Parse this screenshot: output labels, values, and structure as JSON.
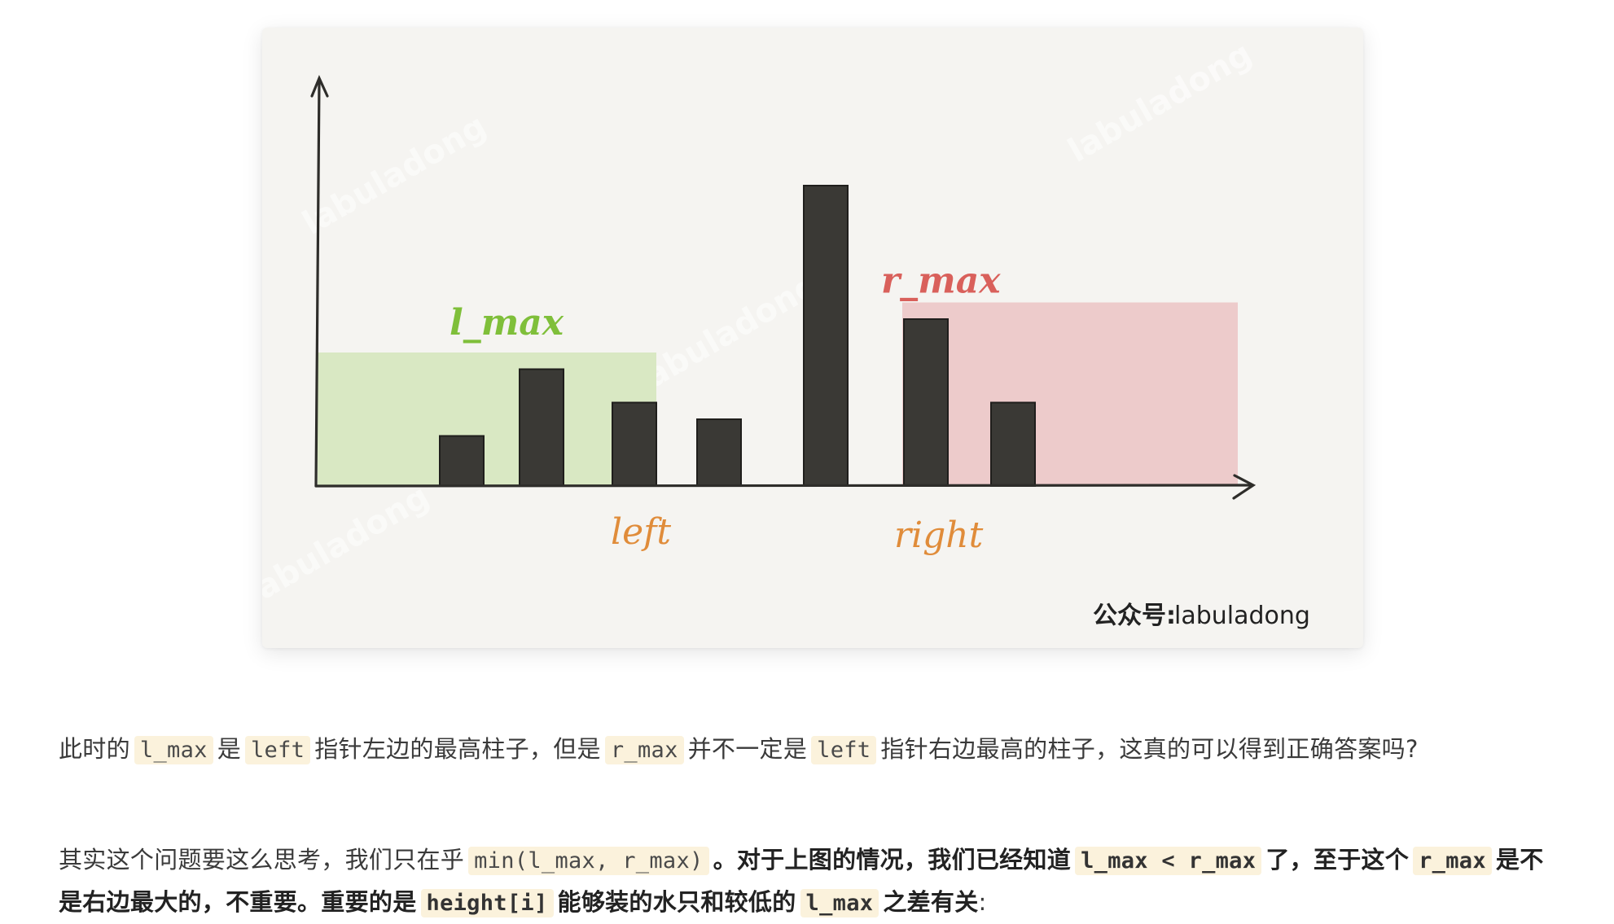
{
  "figure": {
    "labels": {
      "l_max": "l_max",
      "r_max": "r_max",
      "left": "left",
      "right": "right"
    },
    "watermark": "labuladong",
    "credit_prefix": "公众号:",
    "credit_name": "labuladong",
    "colors": {
      "bar": "#3a3935",
      "l_region": "#d9e8c3",
      "r_region": "#ecc8c8",
      "l_label": "#7fbf3a",
      "r_label": "#d9605b",
      "pointer_label": "#e08c3a"
    }
  },
  "chart_data": {
    "type": "bar",
    "values": [
      0,
      3,
      7,
      5,
      4,
      18,
      10,
      5
    ],
    "l_max_level": 8,
    "r_max_level": 11,
    "pointers": {
      "left": 3,
      "right": 6
    }
  },
  "paragraph1": {
    "t1": "此时的",
    "c1": "l_max",
    "t2": "是",
    "c2": "left",
    "t3": "指针左边的最高柱子，但是",
    "c3": "r_max",
    "t4": "并不一定是",
    "c4": "left",
    "t5": "指针右边最高的柱子，这真的可以得到正确答案吗?"
  },
  "paragraph2": {
    "t1": "其实这个问题要这么思考，我们只在乎",
    "c1": "min(l_max, r_max)",
    "b1": "。对于上图的情况，我们已经知道",
    "c2": "l_max < r_max",
    "b2": "了，至于这个",
    "c3": "r_max",
    "b3": "是不是右边最大的，不重要。重要的是",
    "c4": "height[i]",
    "b4": "能够装的水只和较低的",
    "c5": "l_max",
    "b5": "之差有关",
    "t2": ":"
  }
}
